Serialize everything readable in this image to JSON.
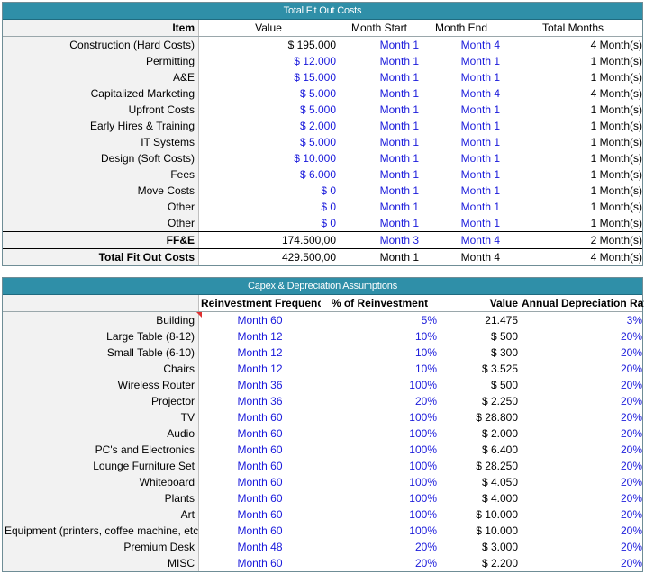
{
  "fitout": {
    "title": "Total Fit Out Costs",
    "headers": [
      "Item",
      "Value",
      "Month Start",
      "Month End",
      "Total Months"
    ],
    "rows": [
      {
        "item": "Construction (Hard Costs)",
        "value": "$ 195.000",
        "start": "Month 1",
        "end": "Month 4",
        "total": "4 Month(s)",
        "value_blue": false
      },
      {
        "item": "Permitting",
        "value": "$ 12.000",
        "start": "Month 1",
        "end": "Month 1",
        "total": "1 Month(s)",
        "value_blue": true
      },
      {
        "item": "A&E",
        "value": "$ 15.000",
        "start": "Month 1",
        "end": "Month 1",
        "total": "1 Month(s)",
        "value_blue": true
      },
      {
        "item": "Capitalized Marketing",
        "value": "$ 5.000",
        "start": "Month 1",
        "end": "Month 4",
        "total": "4 Month(s)",
        "value_blue": true
      },
      {
        "item": "Upfront Costs",
        "value": "$ 5.000",
        "start": "Month 1",
        "end": "Month 1",
        "total": "1 Month(s)",
        "value_blue": true
      },
      {
        "item": "Early Hires & Training",
        "value": "$ 2.000",
        "start": "Month 1",
        "end": "Month 1",
        "total": "1 Month(s)",
        "value_blue": true
      },
      {
        "item": "IT Systems",
        "value": "$ 5.000",
        "start": "Month 1",
        "end": "Month 1",
        "total": "1 Month(s)",
        "value_blue": true
      },
      {
        "item": "Design (Soft Costs)",
        "value": "$ 10.000",
        "start": "Month 1",
        "end": "Month 1",
        "total": "1 Month(s)",
        "value_blue": true
      },
      {
        "item": "Fees",
        "value": "$ 6.000",
        "start": "Month 1",
        "end": "Month 1",
        "total": "1 Month(s)",
        "value_blue": true
      },
      {
        "item": "Move Costs",
        "value": "$ 0",
        "start": "Month 1",
        "end": "Month 1",
        "total": "1 Month(s)",
        "value_blue": true
      },
      {
        "item": "Other",
        "value": "$ 0",
        "start": "Month 1",
        "end": "Month 1",
        "total": "1 Month(s)",
        "value_blue": true
      },
      {
        "item": "Other",
        "value": "$ 0",
        "start": "Month 1",
        "end": "Month 1",
        "total": "1 Month(s)",
        "value_blue": true
      }
    ],
    "ffe": {
      "item": "FF&E",
      "value": "174.500,00",
      "start": "Month 3",
      "end": "Month 4",
      "total": "2 Month(s)"
    },
    "grand": {
      "item": "Total Fit Out Costs",
      "value": "429.500,00",
      "start": "Month 1",
      "end": "Month 4",
      "total": "4 Month(s)"
    }
  },
  "capex": {
    "title": "Capex & Depreciation Assumptions",
    "headers": [
      "",
      "Reinvestment Frequency",
      "% of Reinvestment",
      "Value",
      "Annual Depreciation Rate"
    ],
    "rows": [
      {
        "item": "Building",
        "freq": "Month 60",
        "pct": "5%",
        "value": "21.475",
        "rate": "3%"
      },
      {
        "item": "Large Table (8-12)",
        "freq": "Month 12",
        "pct": "10%",
        "value": "$ 500",
        "rate": "20%"
      },
      {
        "item": "Small Table (6-10)",
        "freq": "Month 12",
        "pct": "10%",
        "value": "$ 300",
        "rate": "20%"
      },
      {
        "item": "Chairs",
        "freq": "Month 12",
        "pct": "10%",
        "value": "$ 3.525",
        "rate": "20%"
      },
      {
        "item": "Wireless Router",
        "freq": "Month 36",
        "pct": "100%",
        "value": "$ 500",
        "rate": "20%"
      },
      {
        "item": "Projector",
        "freq": "Month 36",
        "pct": "20%",
        "value": "$ 2.250",
        "rate": "20%"
      },
      {
        "item": "TV",
        "freq": "Month 60",
        "pct": "100%",
        "value": "$ 28.800",
        "rate": "20%"
      },
      {
        "item": "Audio",
        "freq": "Month 60",
        "pct": "100%",
        "value": "$ 2.000",
        "rate": "20%"
      },
      {
        "item": "PC's and Electronics",
        "freq": "Month 60",
        "pct": "100%",
        "value": "$ 6.400",
        "rate": "20%"
      },
      {
        "item": "Lounge Furniture Set",
        "freq": "Month 60",
        "pct": "100%",
        "value": "$ 28.250",
        "rate": "20%"
      },
      {
        "item": "Whiteboard",
        "freq": "Month 60",
        "pct": "100%",
        "value": "$ 4.050",
        "rate": "20%"
      },
      {
        "item": "Plants",
        "freq": "Month 60",
        "pct": "100%",
        "value": "$ 4.000",
        "rate": "20%"
      },
      {
        "item": "Art",
        "freq": "Month 60",
        "pct": "100%",
        "value": "$ 10.000",
        "rate": "20%"
      },
      {
        "item": "Equipment (printers, coffee machine, etc..)",
        "freq": "Month 60",
        "pct": "100%",
        "value": "$ 10.000",
        "rate": "20%"
      },
      {
        "item": "Premium Desk",
        "freq": "Month 48",
        "pct": "20%",
        "value": "$ 3.000",
        "rate": "20%"
      },
      {
        "item": "MISC",
        "freq": "Month 60",
        "pct": "20%",
        "value": "$ 2.200",
        "rate": "20%"
      }
    ]
  },
  "colors": {
    "header_bar": "#2f8fa8",
    "input_blue": "#1a1adb",
    "label_bg": "#f2f2f2"
  }
}
